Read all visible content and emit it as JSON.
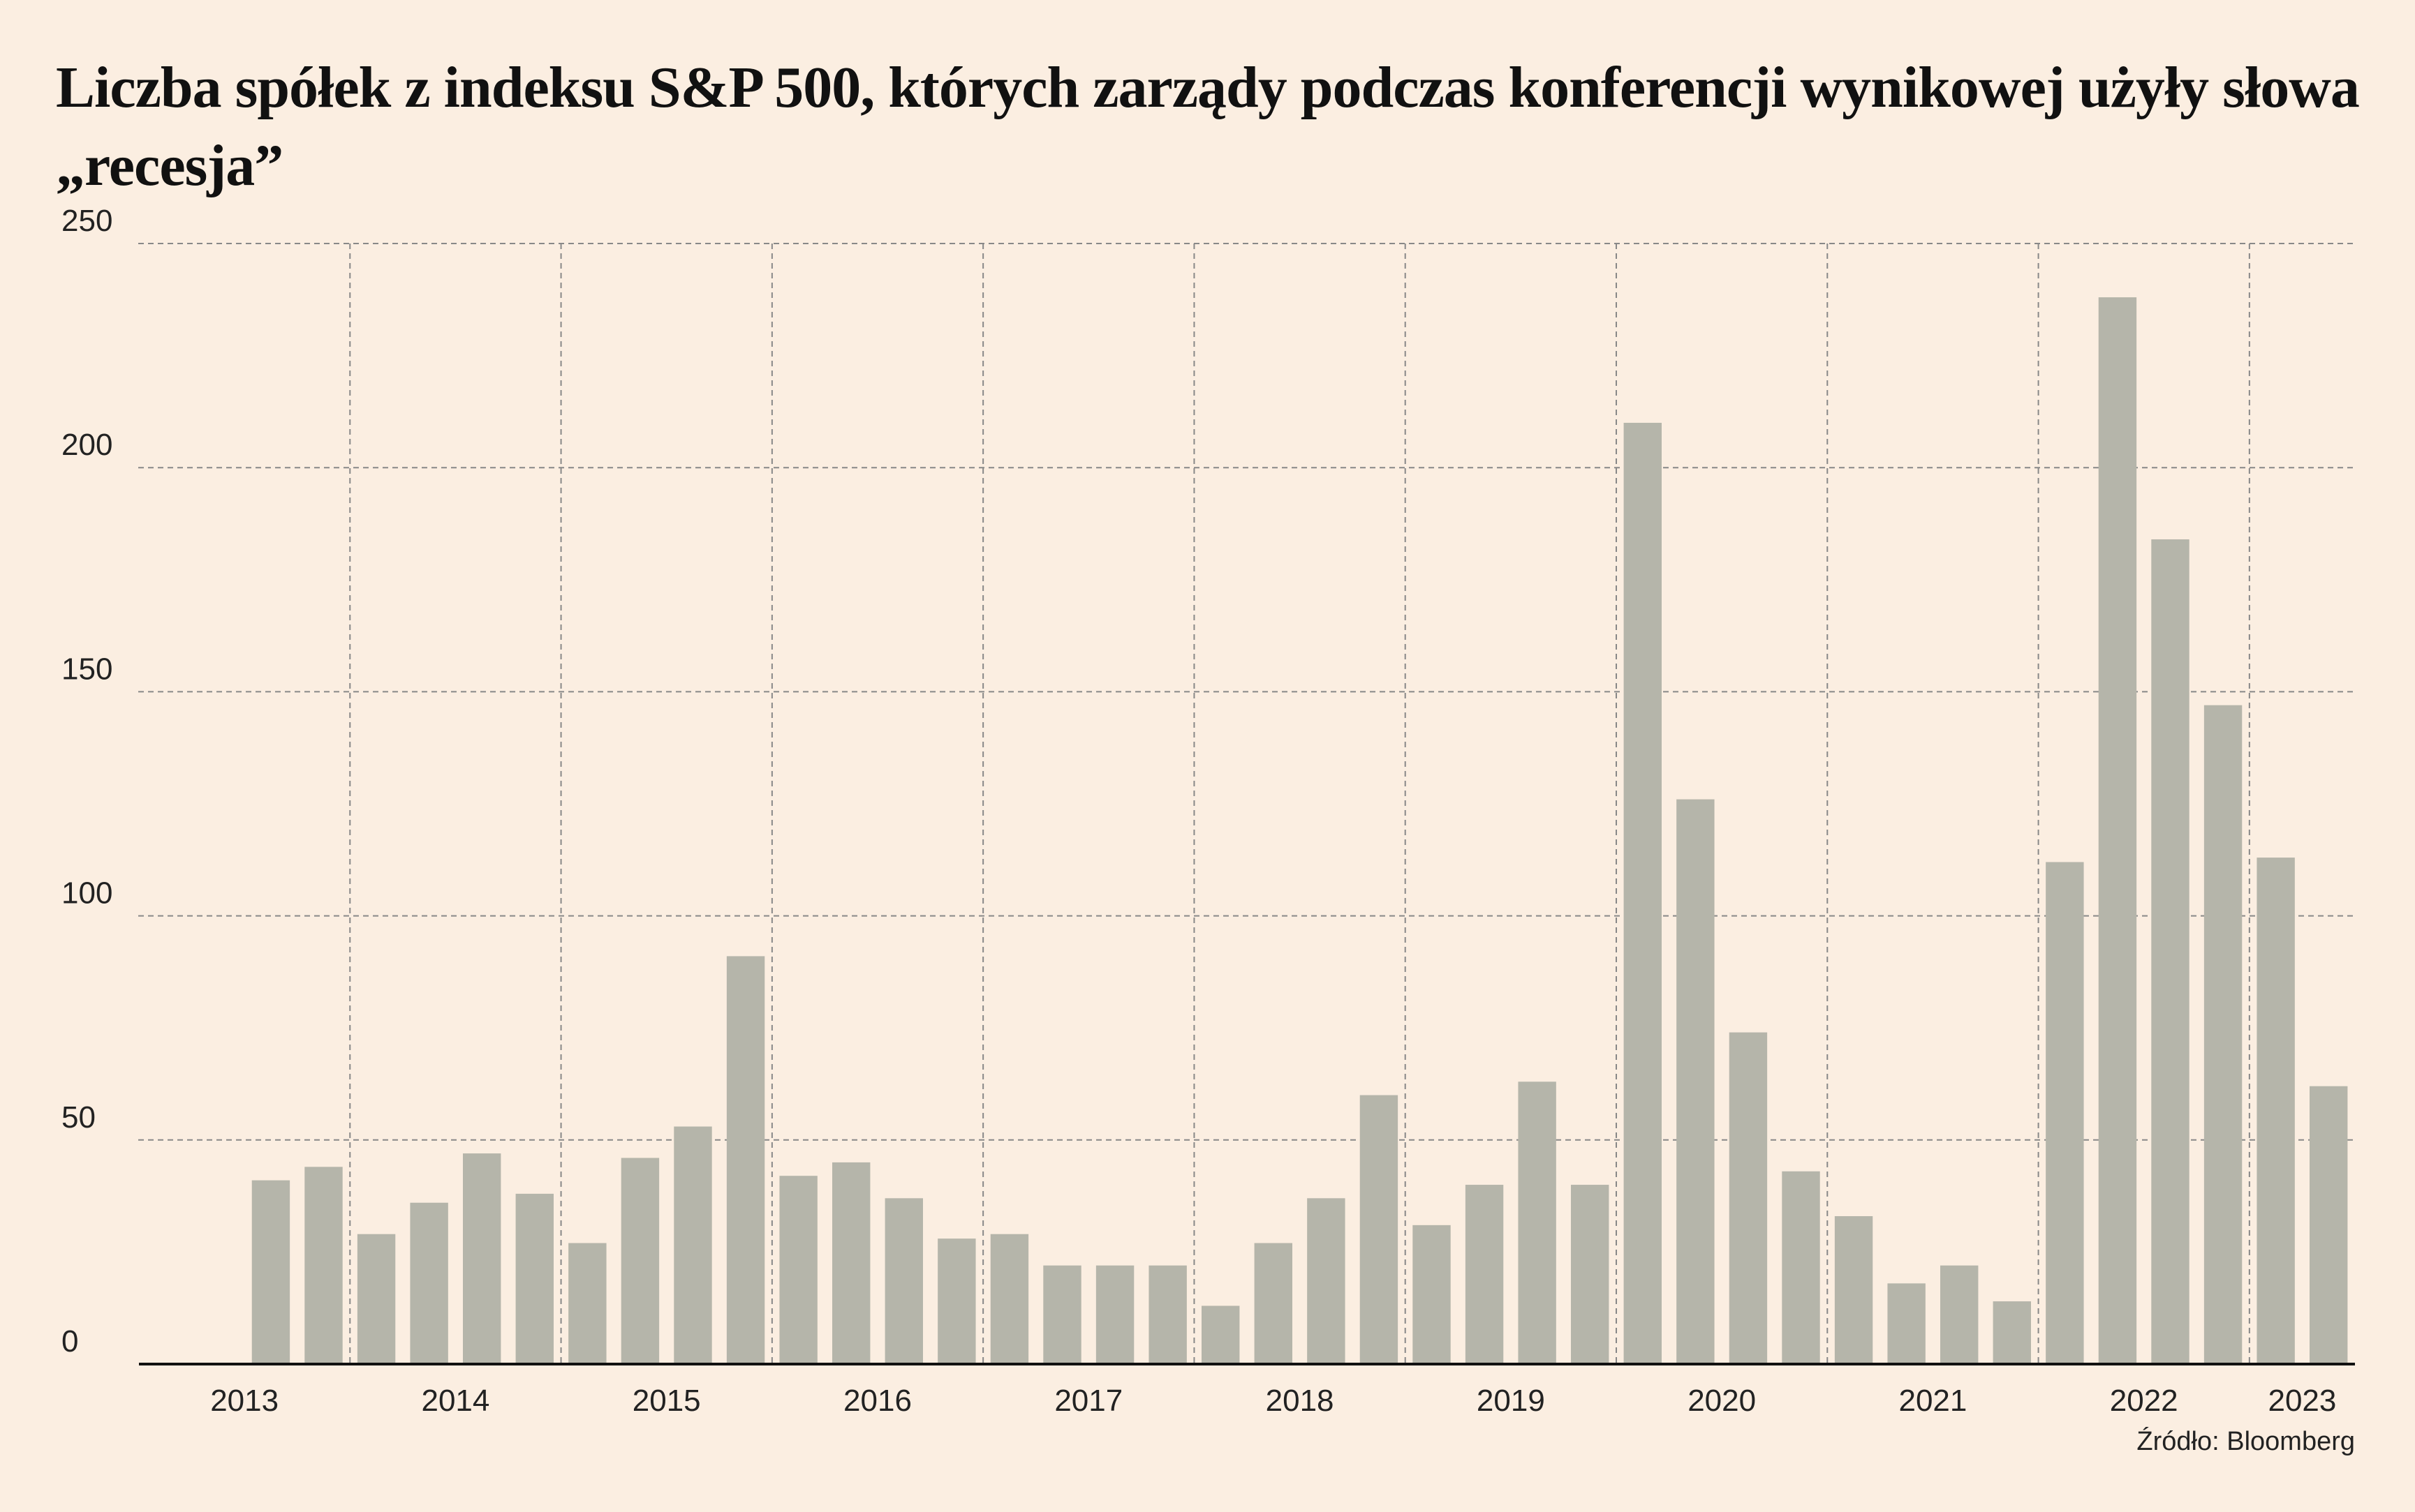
{
  "chart_data": {
    "type": "bar",
    "title": "Liczba spółek z indeksu S&P 500, których zarządy podczas konferencji wynikowej użyły słowa „recesja”",
    "years": [
      "2013",
      "2014",
      "2015",
      "2016",
      "2017",
      "2018",
      "2019",
      "2020",
      "2021",
      "2022",
      "2023"
    ],
    "values": [
      null,
      null,
      41,
      44,
      29,
      36,
      47,
      38,
      27,
      46,
      53,
      91,
      42,
      45,
      37,
      28,
      29,
      22,
      22,
      22,
      13,
      27,
      37,
      60,
      31,
      40,
      63,
      40,
      210,
      126,
      74,
      43,
      33,
      18,
      22,
      14,
      112,
      238,
      184,
      147,
      113,
      62
    ],
    "color": "#b5b5aa",
    "ylim": [
      0,
      250
    ],
    "yticks": [
      0,
      50,
      100,
      150,
      200,
      250
    ],
    "grid": true,
    "source": "Źródło: Bloomberg"
  }
}
